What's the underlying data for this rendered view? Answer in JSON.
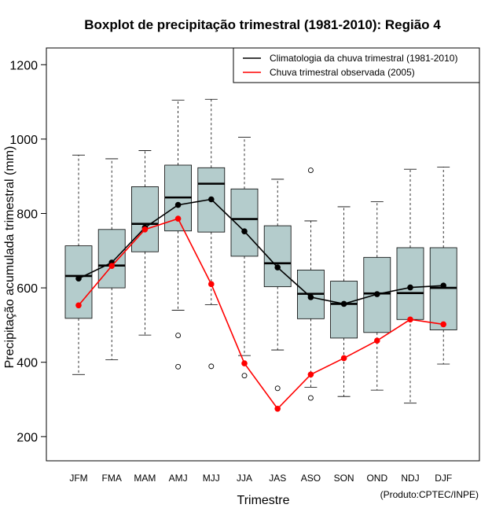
{
  "chart_data": {
    "type": "boxplot",
    "title": "Boxplot de precipitação trimestral (1981-2010): Região 4",
    "xlabel": "Trimestre",
    "ylabel": "Precipitação acumulada trimestral (mm)",
    "credit": "(Produto:CPTEC/INPE)",
    "ylim": [
      135,
      1245
    ],
    "yticks": [
      200,
      400,
      600,
      800,
      1000,
      1200
    ],
    "categories": [
      "JFM",
      "FMA",
      "MAM",
      "AMJ",
      "MJJ",
      "JJA",
      "JAS",
      "ASO",
      "SON",
      "OND",
      "NDJ",
      "DJF"
    ],
    "boxes": [
      {
        "whisker_low": 367,
        "q1": 518,
        "median": 632,
        "q3": 713,
        "whisker_high": 957,
        "outliers": []
      },
      {
        "whisker_low": 407,
        "q1": 600,
        "median": 660,
        "q3": 757,
        "whisker_high": 947,
        "outliers": []
      },
      {
        "whisker_low": 473,
        "q1": 697,
        "median": 772,
        "q3": 872,
        "whisker_high": 969,
        "outliers": []
      },
      {
        "whisker_low": 540,
        "q1": 753,
        "median": 843,
        "q3": 930,
        "whisker_high": 1105,
        "outliers": [
          472,
          388
        ]
      },
      {
        "whisker_low": 555,
        "q1": 750,
        "median": 880,
        "q3": 923,
        "whisker_high": 1107,
        "outliers": [
          389
        ]
      },
      {
        "whisker_low": 418,
        "q1": 685,
        "median": 785,
        "q3": 866,
        "whisker_high": 1005,
        "outliers": [
          364
        ]
      },
      {
        "whisker_low": 433,
        "q1": 603,
        "median": 666,
        "q3": 767,
        "whisker_high": 892,
        "outliers": [
          330
        ]
      },
      {
        "whisker_low": 333,
        "q1": 517,
        "median": 584,
        "q3": 648,
        "whisker_high": 780,
        "outliers": [
          916,
          304
        ]
      },
      {
        "whisker_low": 308,
        "q1": 465,
        "median": 557,
        "q3": 618,
        "whisker_high": 818,
        "outliers": []
      },
      {
        "whisker_low": 325,
        "q1": 480,
        "median": 585,
        "q3": 682,
        "whisker_high": 832,
        "outliers": []
      },
      {
        "whisker_low": 290,
        "q1": 515,
        "median": 586,
        "q3": 708,
        "whisker_high": 919,
        "outliers": []
      },
      {
        "whisker_low": 395,
        "q1": 487,
        "median": 600,
        "q3": 708,
        "whisker_high": 925,
        "outliers": []
      }
    ],
    "series": [
      {
        "name": "Climatologia da chuva trimestral (1981-2010)",
        "color": "#000000",
        "values": [
          625,
          668,
          762,
          823,
          838,
          752,
          655,
          575,
          557,
          583,
          601,
          606
        ]
      },
      {
        "name": "Chuva trimestral observada (2005)",
        "color": "#ff0000",
        "values": [
          553,
          659,
          757,
          786,
          610,
          397,
          275,
          367,
          411,
          458,
          515,
          502
        ]
      }
    ],
    "box_fill": "#b4cccc",
    "legend_position": "top-right",
    "grid": false
  }
}
